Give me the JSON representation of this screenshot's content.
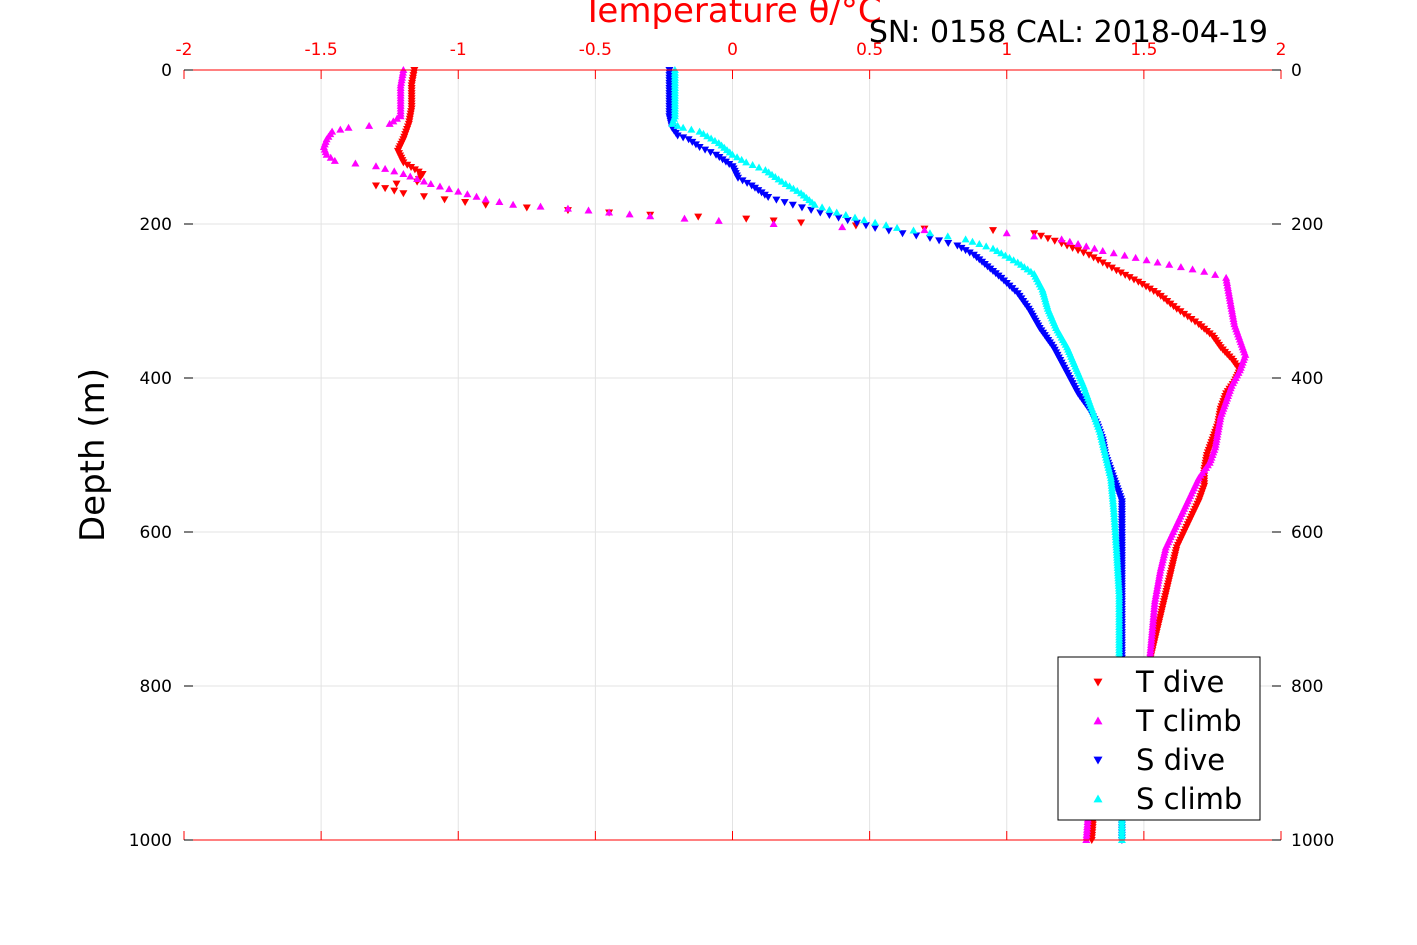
{
  "chart_data": {
    "type": "scatter",
    "title": "",
    "xlabel": "Temperature θ/°C",
    "ylabel": "Depth (m)",
    "annotation": "SN: 0158  CAL: 2018-04-19",
    "xlim": [
      -2,
      2
    ],
    "ylim": [
      0,
      1000
    ],
    "y_reversed": true,
    "x_ticks": [
      "-2",
      "-1.5",
      "-1",
      "-0.5",
      "0",
      "0.5",
      "1",
      "1.5",
      "2"
    ],
    "y_ticks": [
      "0",
      "200",
      "400",
      "600",
      "800",
      "1000"
    ],
    "grid": true,
    "legend_position": "bottom-right",
    "series": [
      {
        "name": "T dive",
        "color": "#ff0000",
        "marker": "triangle-down",
        "points": [
          [
            -1.16,
            0
          ],
          [
            -1.17,
            20
          ],
          [
            -1.17,
            50
          ],
          [
            -1.18,
            70
          ],
          [
            -1.2,
            90
          ],
          [
            -1.22,
            105
          ],
          [
            -1.2,
            120
          ],
          [
            -1.13,
            135
          ],
          [
            -1.15,
            145
          ],
          [
            -1.3,
            150
          ],
          [
            -1.2,
            160
          ],
          [
            -1.05,
            168
          ],
          [
            -0.9,
            175
          ],
          [
            -0.6,
            182
          ],
          [
            -0.3,
            188
          ],
          [
            0.05,
            193
          ],
          [
            0.25,
            198
          ],
          [
            0.45,
            202
          ],
          [
            0.7,
            206
          ],
          [
            0.95,
            208
          ],
          [
            1.1,
            212
          ],
          [
            1.2,
            225
          ],
          [
            1.3,
            240
          ],
          [
            1.4,
            260
          ],
          [
            1.48,
            275
          ],
          [
            1.55,
            290
          ],
          [
            1.62,
            310
          ],
          [
            1.7,
            330
          ],
          [
            1.75,
            345
          ],
          [
            1.78,
            360
          ],
          [
            1.82,
            375
          ],
          [
            1.85,
            390
          ],
          [
            1.83,
            405
          ],
          [
            1.8,
            420
          ],
          [
            1.78,
            440
          ],
          [
            1.77,
            460
          ],
          [
            1.75,
            480
          ],
          [
            1.73,
            500
          ],
          [
            1.72,
            520
          ],
          [
            1.72,
            540
          ],
          [
            1.7,
            560
          ],
          [
            1.66,
            590
          ],
          [
            1.62,
            620
          ],
          [
            1.6,
            650
          ],
          [
            1.58,
            680
          ],
          [
            1.56,
            710
          ],
          [
            1.54,
            740
          ],
          [
            1.52,
            770
          ],
          [
            1.5,
            790
          ],
          [
            1.44,
            820
          ],
          [
            1.34,
            860
          ],
          [
            1.33,
            900
          ],
          [
            1.32,
            950
          ],
          [
            1.31,
            1000
          ]
        ]
      },
      {
        "name": "T climb",
        "color": "#ff00ff",
        "marker": "triangle-up",
        "points": [
          [
            -1.2,
            0
          ],
          [
            -1.21,
            20
          ],
          [
            -1.21,
            40
          ],
          [
            -1.21,
            60
          ],
          [
            -1.25,
            70
          ],
          [
            -1.4,
            75
          ],
          [
            -1.46,
            80
          ],
          [
            -1.48,
            90
          ],
          [
            -1.49,
            100
          ],
          [
            -1.48,
            110
          ],
          [
            -1.45,
            118
          ],
          [
            -1.3,
            125
          ],
          [
            -1.2,
            135
          ],
          [
            -1.1,
            148
          ],
          [
            -1.0,
            158
          ],
          [
            -0.9,
            168
          ],
          [
            -0.8,
            175
          ],
          [
            -0.6,
            180
          ],
          [
            -0.45,
            185
          ],
          [
            -0.3,
            190
          ],
          [
            -0.05,
            196
          ],
          [
            0.15,
            200
          ],
          [
            0.4,
            204
          ],
          [
            0.7,
            208
          ],
          [
            1.0,
            212
          ],
          [
            1.2,
            220
          ],
          [
            1.35,
            235
          ],
          [
            1.55,
            250
          ],
          [
            1.72,
            262
          ],
          [
            1.8,
            270
          ],
          [
            1.81,
            290
          ],
          [
            1.82,
            310
          ],
          [
            1.83,
            330
          ],
          [
            1.85,
            350
          ],
          [
            1.87,
            370
          ],
          [
            1.85,
            390
          ],
          [
            1.82,
            410
          ],
          [
            1.8,
            430
          ],
          [
            1.78,
            450
          ],
          [
            1.77,
            470
          ],
          [
            1.76,
            490
          ],
          [
            1.74,
            510
          ],
          [
            1.7,
            530
          ],
          [
            1.66,
            560
          ],
          [
            1.62,
            590
          ],
          [
            1.58,
            620
          ],
          [
            1.56,
            650
          ],
          [
            1.54,
            690
          ],
          [
            1.53,
            730
          ],
          [
            1.52,
            770
          ],
          [
            1.46,
            810
          ],
          [
            1.38,
            840
          ],
          [
            1.33,
            870
          ],
          [
            1.31,
            900
          ],
          [
            1.3,
            950
          ],
          [
            1.29,
            1000
          ]
        ]
      },
      {
        "name": "S dive",
        "color": "#0000ff",
        "marker": "triangle-down",
        "points": [
          [
            -0.23,
            0
          ],
          [
            -0.23,
            20
          ],
          [
            -0.23,
            40
          ],
          [
            -0.23,
            60
          ],
          [
            -0.22,
            75
          ],
          [
            -0.2,
            85
          ],
          [
            -0.16,
            90
          ],
          [
            -0.12,
            100
          ],
          [
            -0.06,
            110
          ],
          [
            0.0,
            125
          ],
          [
            0.02,
            140
          ],
          [
            0.07,
            150
          ],
          [
            0.13,
            165
          ],
          [
            0.22,
            175
          ],
          [
            0.32,
            185
          ],
          [
            0.42,
            195
          ],
          [
            0.52,
            205
          ],
          [
            0.62,
            212
          ],
          [
            0.72,
            218
          ],
          [
            0.82,
            228
          ],
          [
            0.88,
            240
          ],
          [
            0.93,
            255
          ],
          [
            0.98,
            270
          ],
          [
            1.04,
            290
          ],
          [
            1.08,
            310
          ],
          [
            1.12,
            335
          ],
          [
            1.17,
            360
          ],
          [
            1.2,
            380
          ],
          [
            1.23,
            400
          ],
          [
            1.26,
            420
          ],
          [
            1.3,
            440
          ],
          [
            1.33,
            460
          ],
          [
            1.35,
            480
          ],
          [
            1.36,
            500
          ],
          [
            1.38,
            520
          ],
          [
            1.4,
            540
          ],
          [
            1.42,
            560
          ],
          [
            1.42,
            600
          ],
          [
            1.42,
            650
          ],
          [
            1.42,
            700
          ],
          [
            1.42,
            750
          ],
          [
            1.42,
            800
          ],
          [
            1.42,
            850
          ],
          [
            1.42,
            900
          ],
          [
            1.42,
            950
          ],
          [
            1.42,
            1000
          ]
        ]
      },
      {
        "name": "S climb",
        "color": "#00ffff",
        "marker": "triangle-up",
        "points": [
          [
            -0.21,
            0
          ],
          [
            -0.21,
            20
          ],
          [
            -0.21,
            40
          ],
          [
            -0.21,
            60
          ],
          [
            -0.22,
            70
          ],
          [
            -0.18,
            75
          ],
          [
            -0.12,
            80
          ],
          [
            -0.05,
            95
          ],
          [
            0.0,
            110
          ],
          [
            0.05,
            120
          ],
          [
            0.12,
            130
          ],
          [
            0.18,
            145
          ],
          [
            0.25,
            160
          ],
          [
            0.3,
            175
          ],
          [
            0.38,
            185
          ],
          [
            0.48,
            195
          ],
          [
            0.6,
            205
          ],
          [
            0.72,
            212
          ],
          [
            0.85,
            220
          ],
          [
            0.95,
            232
          ],
          [
            1.04,
            250
          ],
          [
            1.1,
            265
          ],
          [
            1.13,
            285
          ],
          [
            1.15,
            310
          ],
          [
            1.18,
            335
          ],
          [
            1.22,
            360
          ],
          [
            1.25,
            385
          ],
          [
            1.28,
            410
          ],
          [
            1.31,
            440
          ],
          [
            1.34,
            470
          ],
          [
            1.36,
            500
          ],
          [
            1.38,
            530
          ],
          [
            1.39,
            570
          ],
          [
            1.4,
            620
          ],
          [
            1.41,
            680
          ],
          [
            1.41,
            740
          ],
          [
            1.41,
            800
          ],
          [
            1.41,
            860
          ],
          [
            1.42,
            920
          ],
          [
            1.42,
            970
          ],
          [
            1.42,
            1000
          ]
        ]
      }
    ]
  }
}
